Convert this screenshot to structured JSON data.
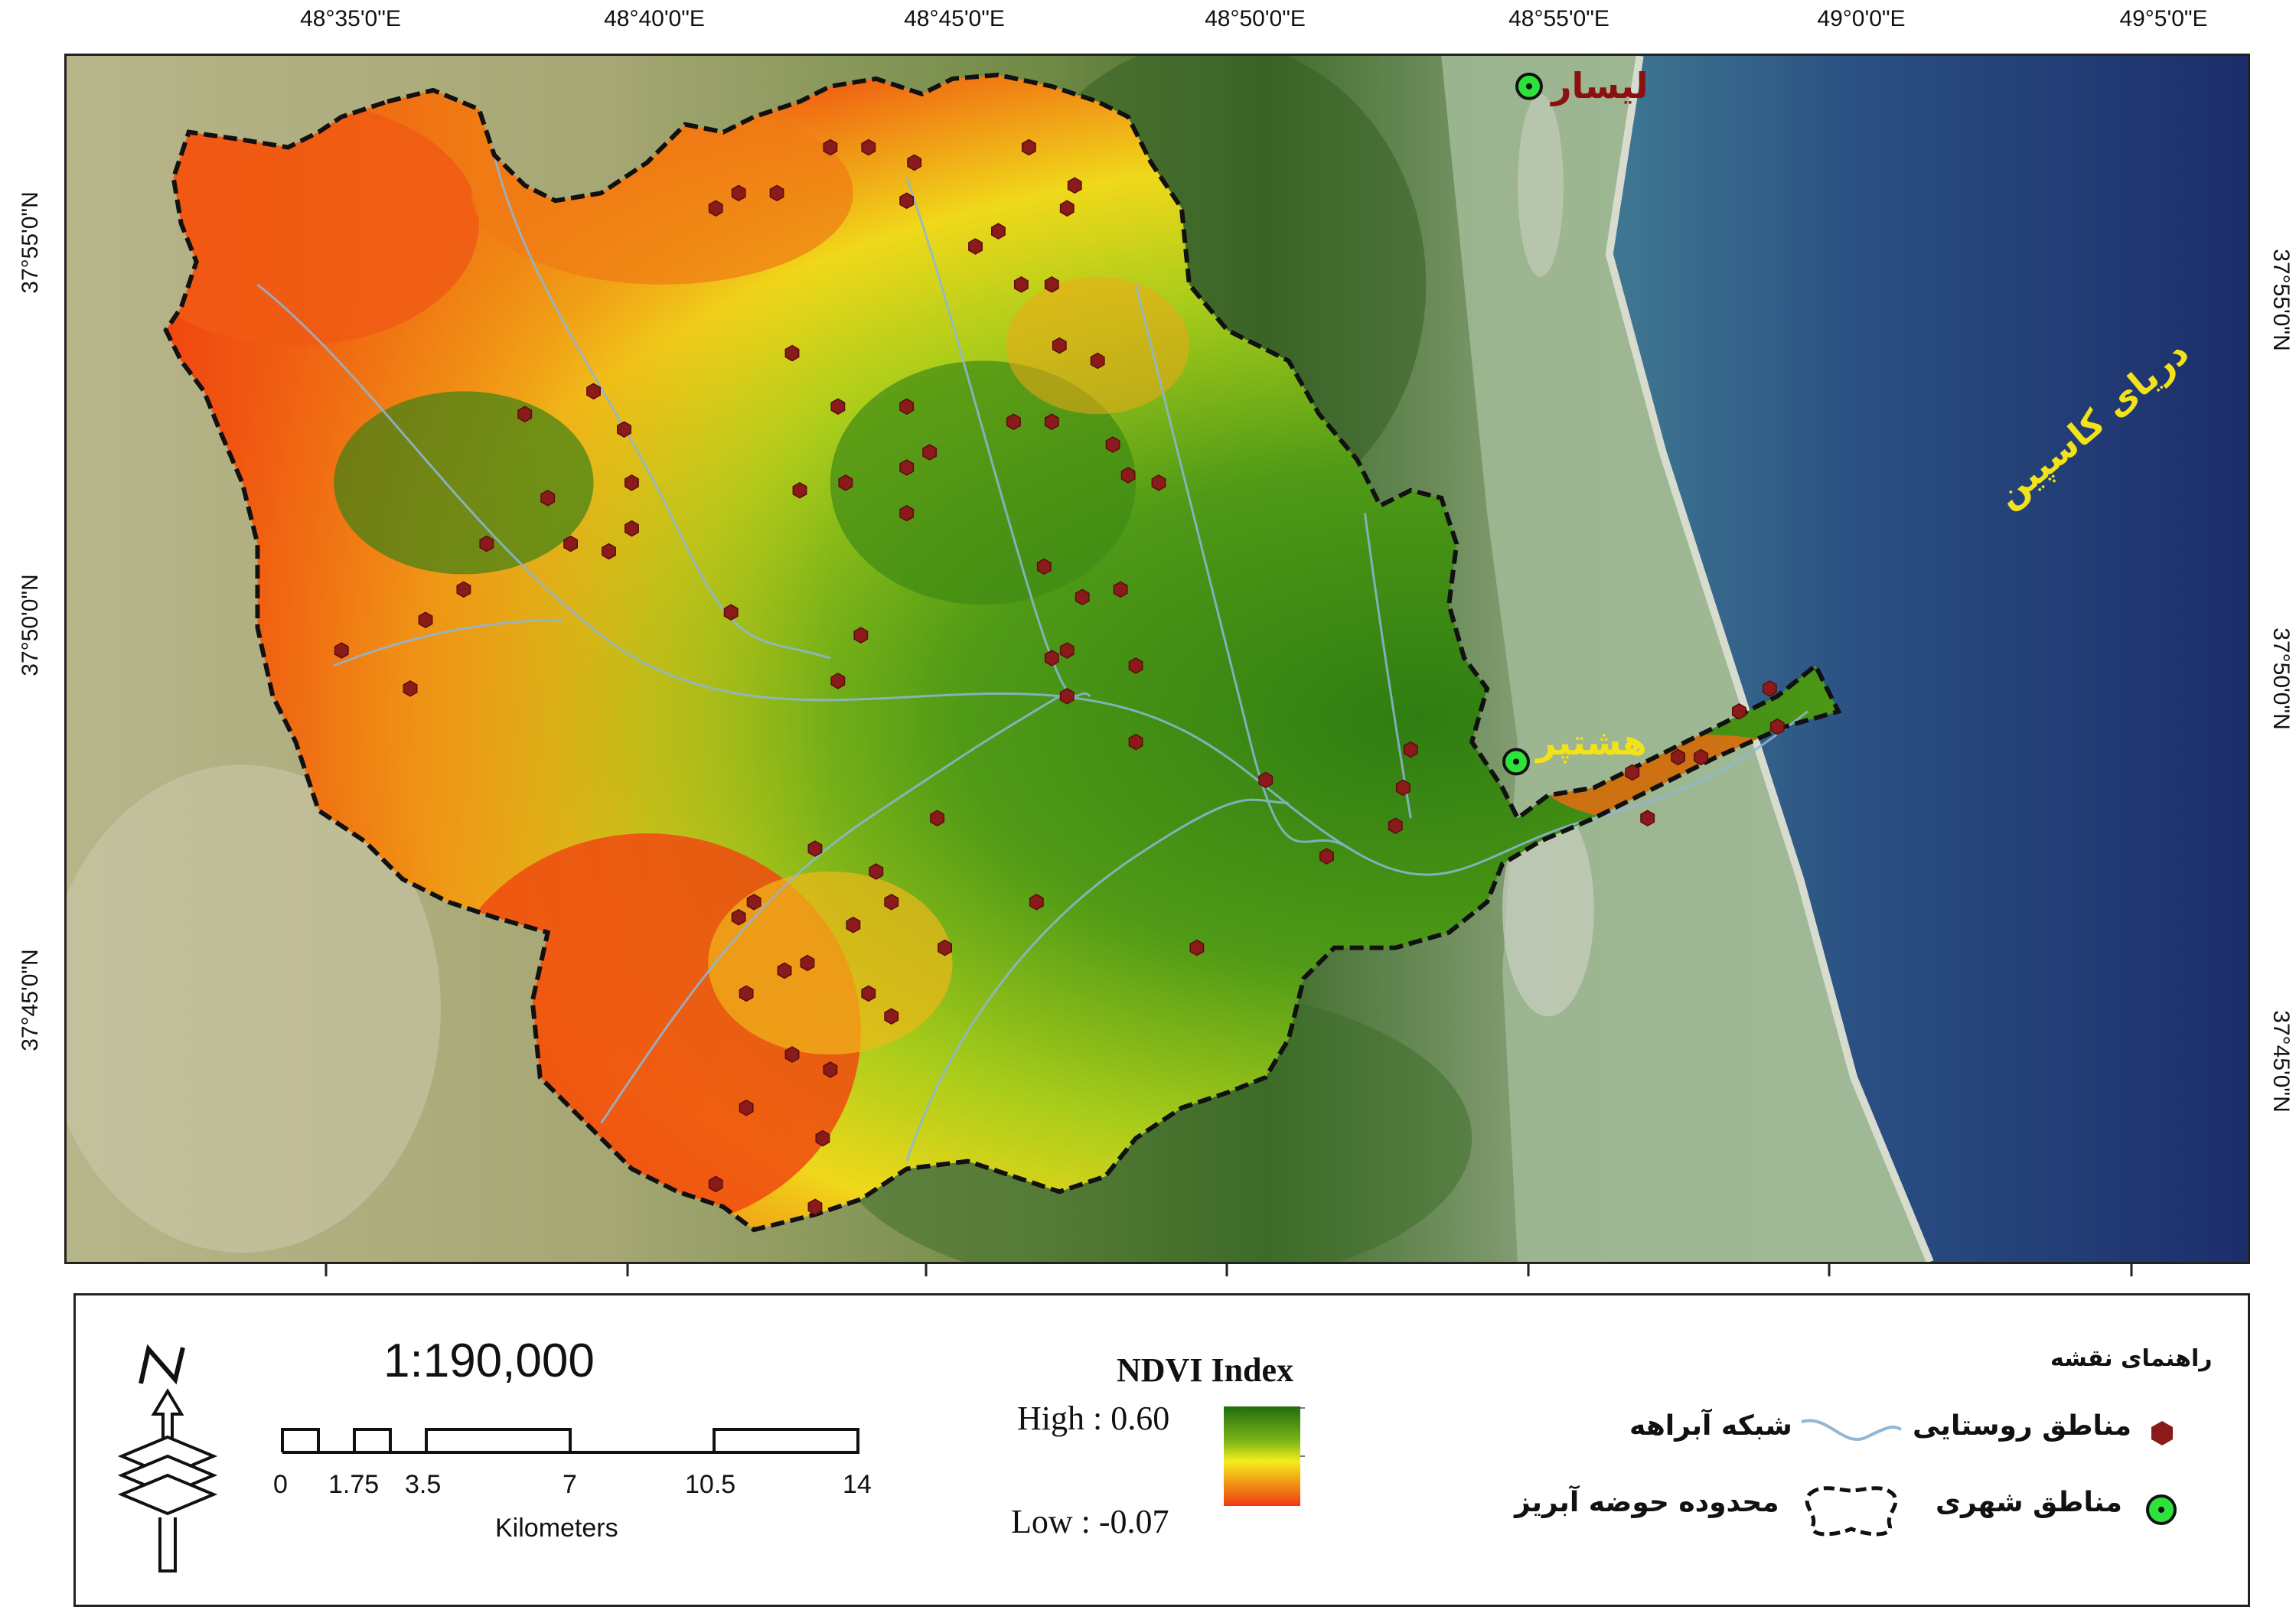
{
  "graticule": {
    "top": [
      "48°35'0\"E",
      "48°40'0\"E",
      "48°45'0\"E",
      "48°50'0\"E",
      "48°55'0\"E",
      "49°0'0\"E",
      "49°5'0\"E"
    ],
    "left": [
      "37°55'0\"N",
      "37°50'0\"N",
      "37°45'0\"N"
    ],
    "right": [
      "37°55'0\"N",
      "37°50'0\"N",
      "37°45'0\"N"
    ]
  },
  "places": {
    "lisar": "لیسار",
    "hashtpar": "هشتپر",
    "caspian": "دریای کاسپین"
  },
  "scale": {
    "ratio": "1:190,000",
    "ticks": [
      "0",
      "1.75",
      "3.5",
      "7",
      "10.5",
      "14"
    ],
    "unit": "Kilometers"
  },
  "ndvi": {
    "title": "NDVI Index",
    "high": "High : 0.60",
    "low": "Low : -0.07",
    "colors": {
      "high": "#1f6d0f",
      "mid": "#f2ee1a",
      "low": "#f03a10"
    }
  },
  "legend": {
    "title": "راهنمای نقشه",
    "items": [
      {
        "label": "مناطق روستایی",
        "icon": "rural-hexagon-icon",
        "color": "#8b1a1a"
      },
      {
        "label": "شبکه آبراهه",
        "icon": "stream-line-icon",
        "color": "#8fb7d6"
      },
      {
        "label": "مناطق شهری",
        "icon": "urban-circle-icon",
        "color": "#2de33b"
      },
      {
        "label": "محدوده حوضه آبریز",
        "icon": "basin-boundary-icon",
        "color": "#000000"
      }
    ]
  },
  "icons": {
    "north": "north-arrow-icon"
  }
}
